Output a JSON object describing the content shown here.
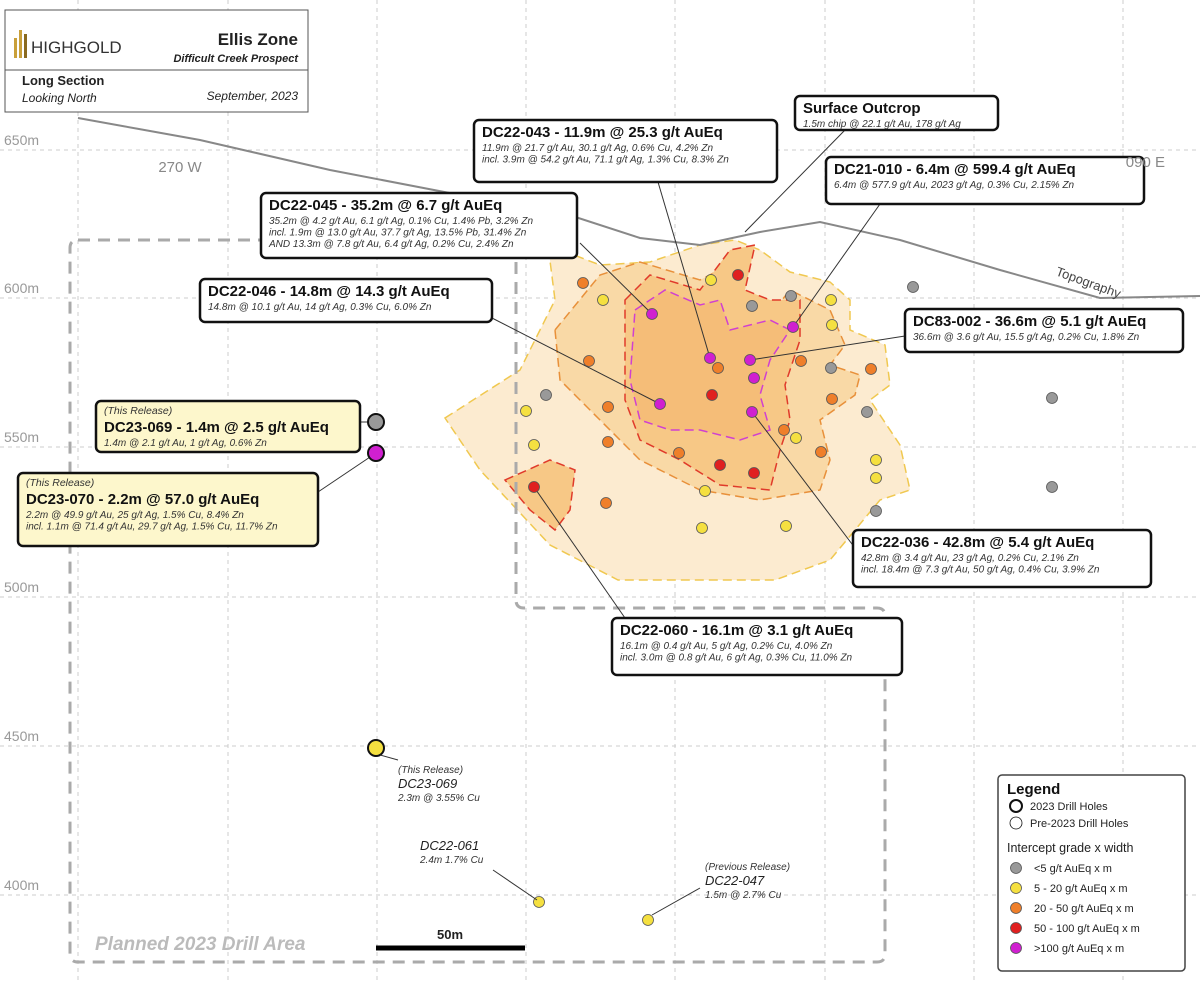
{
  "header": {
    "logo": "HIGHGOLD",
    "title": "Ellis Zone",
    "subtitle": "Difficult Creek Prospect",
    "section": "Long Section",
    "view": "Looking North",
    "date": "September, 2023"
  },
  "elevations": [
    "650m",
    "600m",
    "550m",
    "500m",
    "450m",
    "400m"
  ],
  "labels": {
    "west": "270 W",
    "east": "090 E",
    "topography": "Topography",
    "area": "Planned 2023 Drill Area",
    "scale": "50m"
  },
  "callouts": [
    {
      "title": "DC22-043 - 11.9m @ 25.3 g/t AuEq",
      "lines": [
        "11.9m @ 21.7 g/t Au, 30.1 g/t Ag, 0.6% Cu, 4.2% Zn",
        "incl. 3.9m @ 54.2 g/t Au, 71.1 g/t Ag, 1.3% Cu, 8.3% Zn"
      ]
    },
    {
      "title": "Surface Outcrop",
      "lines": [
        "1.5m chip @ 22.1 g/t Au, 178 g/t Ag"
      ]
    },
    {
      "title": "DC21-010 - 6.4m @ 599.4 g/t AuEq",
      "lines": [
        "6.4m @ 577.9 g/t Au, 2023 g/t Ag, 0.3% Cu, 2.15% Zn"
      ]
    },
    {
      "title": "DC22-045 - 35.2m @ 6.7 g/t AuEq",
      "lines": [
        "35.2m @ 4.2 g/t Au, 6.1 g/t Ag, 0.1% Cu, 1.4% Pb, 3.2% Zn",
        "incl. 1.9m @ 13.0 g/t Au, 37.7 g/t Ag, 13.5% Pb, 31.4% Zn",
        "AND 13.3m @ 7.8 g/t Au, 6.4 g/t Ag, 0.2% Cu, 2.4% Zn"
      ]
    },
    {
      "title": "DC22-046 - 14.8m @ 14.3 g/t AuEq",
      "lines": [
        "14.8m @ 10.1 g/t Au, 14 g/t Ag, 0.3% Cu, 6.0% Zn"
      ]
    },
    {
      "title": "DC83-002 - 36.6m @ 5.1 g/t AuEq",
      "lines": [
        "36.6m @ 3.6 g/t Au, 15.5 g/t Ag, 0.2% Cu, 1.8% Zn"
      ]
    },
    {
      "tag": "(This Release)",
      "title": "DC23-069 - 1.4m @ 2.5 g/t AuEq",
      "lines": [
        "1.4m @ 2.1 g/t Au, 1 g/t Ag, 0.6% Zn"
      ]
    },
    {
      "tag": "(This Release)",
      "title": "DC23-070 - 2.2m @ 57.0 g/t AuEq",
      "lines": [
        "2.2m @ 49.9 g/t Au, 25 g/t Ag, 1.5% Cu, 8.4% Zn",
        "incl. 1.1m @ 71.4 g/t Au, 29.7 g/t Ag, 1.5% Cu, 11.7% Zn"
      ]
    },
    {
      "title": "DC22-036 - 42.8m @ 5.4 g/t AuEq",
      "lines": [
        "42.8m @ 3.4 g/t Au, 23 g/t Ag, 0.2% Cu, 2.1% Zn",
        "incl. 18.4m @ 7.3 g/t Au, 50 g/t Ag, 0.4% Cu, 3.9% Zn"
      ]
    },
    {
      "title": "DC22-060 - 16.1m @ 3.1 g/t AuEq",
      "lines": [
        "16.1m @ 0.4 g/t Au, 5 g/t Ag, 0.2% Cu, 4.0% Zn",
        "incl. 3.0m @ 0.8 g/t Au, 6 g/t Ag, 0.3% Cu, 11.0% Zn"
      ]
    }
  ],
  "notes": [
    {
      "tag": "(This Release)",
      "title": "DC23-069",
      "line": "2.3m @ 3.55% Cu"
    },
    {
      "title": "DC22-061",
      "line": "2.4m 1.7% Cu"
    },
    {
      "tag": "(Previous Release)",
      "title": "DC22-047",
      "line": "1.5m @ 2.7% Cu"
    }
  ],
  "legend": {
    "title": "Legend",
    "holes": [
      "2023 Drill Holes",
      "Pre-2023 Drill Holes"
    ],
    "grade_title": "Intercept grade x width",
    "grades": [
      "<5 g/t AuEq x m",
      "5 - 20 g/t AuEq x m",
      "20 - 50 g/t AuEq x m",
      "50 - 100 g/t AuEq x m",
      ">100 g/t AuEq x m"
    ]
  }
}
